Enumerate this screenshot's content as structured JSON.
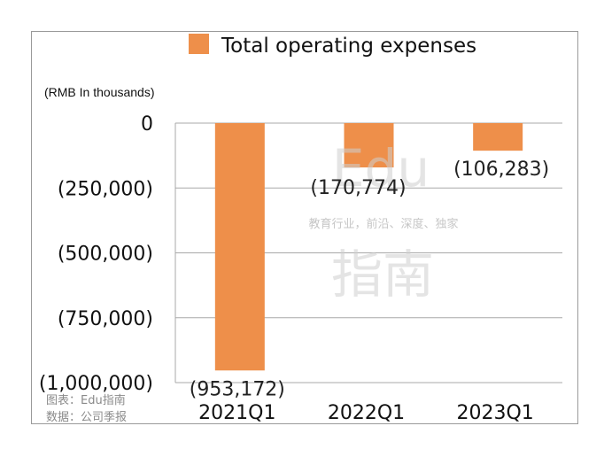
{
  "legend": {
    "label": "Total operating expenses",
    "color": "#EE8F4A"
  },
  "unit_label": "(RMB In thousands)",
  "source_lines": [
    "图表：Edu指南",
    "数据：公司季报"
  ],
  "watermark": {
    "logo": "Edu",
    "tagline": "教育行业，前沿、深度、独家",
    "name": "指南"
  },
  "chart_data": {
    "type": "bar",
    "title": "",
    "xlabel": "",
    "ylabel": "(RMB In thousands)",
    "categories": [
      "2021Q1",
      "2022Q1",
      "2023Q1"
    ],
    "series": [
      {
        "name": "Total operating expenses",
        "values": [
          -953172,
          -170774,
          -106283
        ]
      }
    ],
    "data_labels": [
      "(953,172)",
      "(170,774)",
      "(106,283)"
    ],
    "ylim": [
      -1000000,
      0
    ],
    "yticks": [
      0,
      -250000,
      -500000,
      -750000,
      -1000000
    ],
    "ytick_labels": [
      "0",
      "(250,000)",
      "(500,000)",
      "(750,000)",
      "(1,000,000)"
    ],
    "grid": true,
    "legend_position": "top"
  }
}
